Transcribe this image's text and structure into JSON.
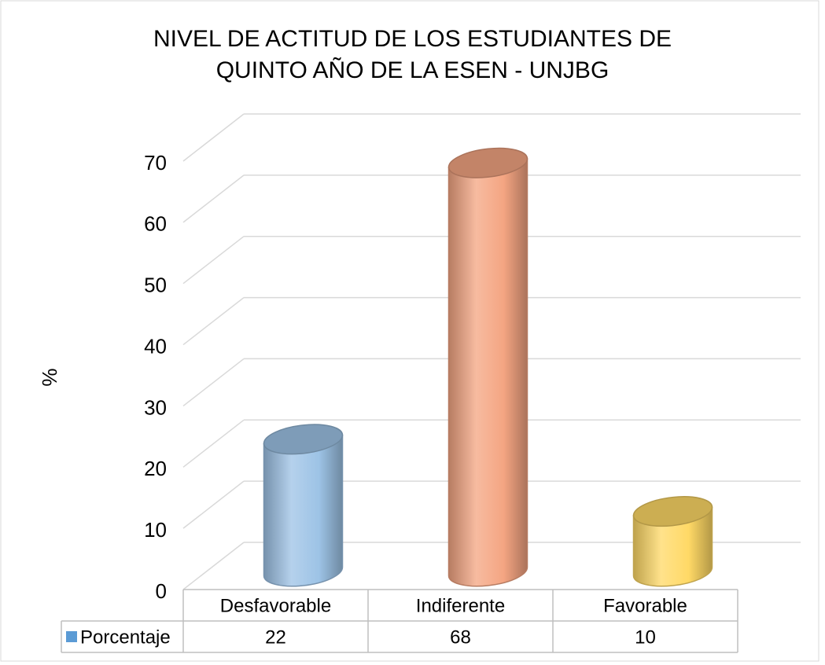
{
  "chart_data": {
    "type": "cylinder-bar",
    "title": "NIVEL DE ACTITUD DE LOS ESTUDIANTES DE QUINTO AÑO DE LA ESEN - UNJBG",
    "y_label": "%",
    "categories": [
      "Desfavorable",
      "Indiferente",
      "Favorable"
    ],
    "series": [
      {
        "name": "Porcentaje",
        "color": "#5b9bd5",
        "values": [
          22,
          68,
          10
        ]
      }
    ],
    "colors": [
      "#9dc3e6",
      "#f4a582",
      "#ffd966"
    ],
    "ylim": [
      0,
      70
    ],
    "yticks": [
      0,
      10,
      20,
      30,
      40,
      50,
      60,
      70
    ],
    "grid": true,
    "data_table": true
  }
}
